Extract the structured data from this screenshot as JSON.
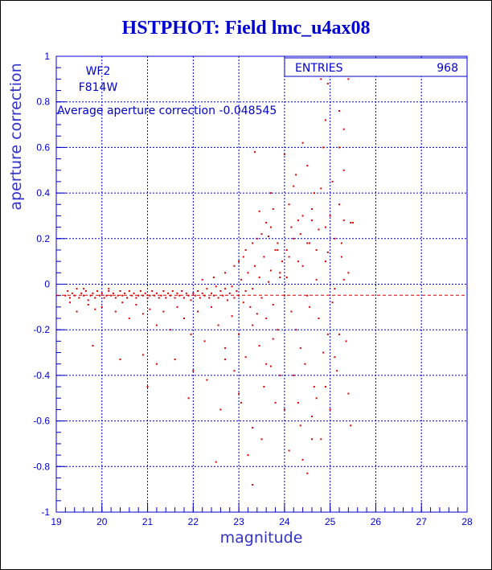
{
  "title": "HSTPHOT: Field lmc_u4ax08",
  "chart_data": {
    "type": "scatter",
    "xlabel": "magnitude",
    "ylabel": "aperture correction",
    "xlim": [
      19,
      28
    ],
    "ylim": [
      -1,
      1
    ],
    "x_ticks": [
      "19",
      "20",
      "21",
      "22",
      "23",
      "24",
      "25",
      "26",
      "27",
      "28"
    ],
    "y_ticks": [
      "-1",
      "-0.8",
      "-0.6",
      "-0.4",
      "-0.2",
      "0",
      "0.2",
      "0.4",
      "0.6",
      "0.8",
      "1"
    ],
    "grid": true,
    "stats_box": {
      "label": "ENTRIES",
      "value": "968"
    },
    "annotation_lines": [
      "WF2",
      "F814W"
    ],
    "average_text": "Average aperture correction -0.048545",
    "average_value": -0.048545,
    "marker_color": "#dd0000",
    "axis_color": "#0000cc",
    "points": [
      [
        19.2,
        -0.05
      ],
      [
        19.25,
        -0.03
      ],
      [
        19.3,
        -0.06
      ],
      [
        19.35,
        -0.04
      ],
      [
        19.4,
        -0.05
      ],
      [
        19.45,
        -0.02
      ],
      [
        19.5,
        -0.06
      ],
      [
        19.55,
        -0.04
      ],
      [
        19.6,
        -0.05
      ],
      [
        19.65,
        -0.03
      ],
      [
        19.7,
        -0.07
      ],
      [
        19.75,
        -0.05
      ],
      [
        19.8,
        -0.04
      ],
      [
        19.85,
        -0.06
      ],
      [
        19.9,
        -0.03
      ],
      [
        19.95,
        -0.05
      ],
      [
        20.0,
        -0.04
      ],
      [
        20.05,
        -0.06
      ],
      [
        20.1,
        -0.05
      ],
      [
        20.15,
        -0.03
      ],
      [
        20.2,
        -0.05
      ],
      [
        20.25,
        -0.04
      ],
      [
        20.3,
        -0.06
      ],
      [
        20.35,
        -0.05
      ],
      [
        20.4,
        -0.03
      ],
      [
        20.45,
        -0.05
      ],
      [
        20.5,
        -0.04
      ],
      [
        20.55,
        -0.06
      ],
      [
        20.6,
        -0.03
      ],
      [
        20.65,
        -0.05
      ],
      [
        20.7,
        -0.04
      ],
      [
        20.75,
        -0.06
      ],
      [
        20.8,
        -0.05
      ],
      [
        20.85,
        -0.03
      ],
      [
        20.9,
        -0.05
      ],
      [
        20.95,
        -0.04
      ],
      [
        21.0,
        -0.06
      ],
      [
        21.05,
        -0.05
      ],
      [
        21.1,
        -0.03
      ],
      [
        21.15,
        -0.05
      ],
      [
        21.2,
        -0.04
      ],
      [
        21.25,
        -0.06
      ],
      [
        21.3,
        -0.05
      ],
      [
        21.35,
        -0.03
      ],
      [
        21.4,
        -0.06
      ],
      [
        21.45,
        -0.04
      ],
      [
        21.5,
        -0.05
      ],
      [
        21.55,
        -0.03
      ],
      [
        21.6,
        -0.06
      ],
      [
        21.65,
        -0.04
      ],
      [
        21.7,
        -0.05
      ],
      [
        21.75,
        -0.03
      ],
      [
        21.8,
        -0.06
      ],
      [
        21.85,
        -0.04
      ],
      [
        21.9,
        -0.05
      ],
      [
        21.95,
        -0.07
      ],
      [
        22.0,
        -0.04
      ],
      [
        22.05,
        -0.05
      ],
      [
        22.1,
        -0.03
      ],
      [
        22.15,
        -0.06
      ],
      [
        22.2,
        -0.04
      ],
      [
        22.25,
        -0.05
      ],
      [
        22.3,
        -0.02
      ],
      [
        22.35,
        -0.06
      ],
      [
        22.4,
        -0.04
      ],
      [
        22.45,
        -0.05
      ],
      [
        22.5,
        -0.01
      ],
      [
        22.55,
        -0.06
      ],
      [
        22.6,
        -0.03
      ],
      [
        22.65,
        -0.05
      ],
      [
        22.7,
        -0.02
      ],
      [
        22.75,
        -0.07
      ],
      [
        22.8,
        -0.04
      ],
      [
        22.85,
        -0.01
      ],
      [
        22.9,
        -0.06
      ],
      [
        22.95,
        -0.03
      ],
      [
        23.0,
        -0.05
      ],
      [
        23.05,
        0.02
      ],
      [
        23.1,
        -0.08
      ],
      [
        23.15,
        -0.03
      ],
      [
        23.2,
        0.05
      ],
      [
        23.25,
        -0.1
      ],
      [
        23.3,
        -0.02
      ],
      [
        23.35,
        0.08
      ],
      [
        23.4,
        -0.13
      ],
      [
        23.45,
        0.03
      ],
      [
        23.5,
        -0.06
      ],
      [
        23.55,
        0.12
      ],
      [
        23.6,
        -0.15
      ],
      [
        23.65,
        0.01
      ],
      [
        23.7,
        0.06
      ],
      [
        23.75,
        -0.09
      ],
      [
        23.8,
        0.15
      ],
      [
        23.85,
        -0.2
      ],
      [
        23.9,
        0.03
      ],
      [
        23.95,
        0.1
      ],
      [
        19.3,
        -0.08
      ],
      [
        19.45,
        -0.12
      ],
      [
        19.6,
        -0.02
      ],
      [
        19.7,
        -0.09
      ],
      [
        19.85,
        -0.11
      ],
      [
        20.0,
        -0.1
      ],
      [
        20.15,
        -0.02
      ],
      [
        20.3,
        -0.12
      ],
      [
        20.45,
        -0.08
      ],
      [
        20.6,
        -0.15
      ],
      [
        20.75,
        -0.09
      ],
      [
        20.9,
        -0.13
      ],
      [
        21.05,
        -0.11
      ],
      [
        21.2,
        -0.18
      ],
      [
        21.35,
        -0.12
      ],
      [
        21.5,
        -0.2
      ],
      [
        21.65,
        -0.1
      ],
      [
        21.8,
        -0.15
      ],
      [
        21.95,
        -0.22
      ],
      [
        22.1,
        -0.12
      ],
      [
        22.25,
        -0.25
      ],
      [
        22.4,
        -0.1
      ],
      [
        22.55,
        -0.18
      ],
      [
        22.7,
        -0.28
      ],
      [
        22.85,
        -0.14
      ],
      [
        23.0,
        -0.22
      ],
      [
        23.15,
        -0.32
      ],
      [
        23.3,
        -0.18
      ],
      [
        23.45,
        -0.27
      ],
      [
        23.6,
        -0.35
      ],
      [
        23.75,
        -0.24
      ],
      [
        23.9,
        -0.4
      ],
      [
        19.8,
        -0.27
      ],
      [
        20.4,
        -0.33
      ],
      [
        20.9,
        -0.31
      ],
      [
        21.2,
        -0.35
      ],
      [
        21.0,
        -0.45
      ],
      [
        21.6,
        -0.33
      ],
      [
        22.0,
        -0.38
      ],
      [
        22.3,
        -0.42
      ],
      [
        21.9,
        -0.5
      ],
      [
        22.6,
        -0.55
      ],
      [
        23.0,
        -0.48
      ],
      [
        23.3,
        -0.63
      ],
      [
        23.2,
        -0.75
      ],
      [
        22.5,
        -0.78
      ],
      [
        23.3,
        -0.88
      ],
      [
        23.5,
        -0.68
      ],
      [
        23.8,
        -0.52
      ],
      [
        23.7,
        -0.36
      ],
      [
        23.55,
        -0.45
      ],
      [
        23.05,
        -0.52
      ],
      [
        22.9,
        -0.38
      ],
      [
        22.7,
        -0.33
      ],
      [
        22.2,
        0.02
      ],
      [
        22.45,
        0.03
      ],
      [
        22.7,
        0.05
      ],
      [
        22.9,
        0.08
      ],
      [
        23.0,
        0.1
      ],
      [
        23.1,
        0.12
      ],
      [
        23.15,
        0.15
      ],
      [
        23.3,
        0.18
      ],
      [
        23.4,
        0.2
      ],
      [
        23.5,
        0.22
      ],
      [
        23.6,
        0.27
      ],
      [
        23.7,
        0.25
      ],
      [
        23.85,
        0.18
      ],
      [
        23.75,
        0.33
      ],
      [
        23.45,
        0.32
      ],
      [
        23.35,
        0.58
      ],
      [
        23.7,
        0.4
      ],
      [
        23.85,
        0.15
      ],
      [
        23.9,
        0.05
      ],
      [
        23.65,
        0.21
      ],
      [
        24.0,
        -0.05
      ],
      [
        24.05,
        0.03
      ],
      [
        24.1,
        0.12
      ],
      [
        24.15,
        -0.12
      ],
      [
        24.2,
        0.2
      ],
      [
        24.25,
        -0.2
      ],
      [
        24.3,
        0.28
      ],
      [
        24.35,
        -0.28
      ],
      [
        24.4,
        0.08
      ],
      [
        24.45,
        -0.35
      ],
      [
        24.5,
        0.18
      ],
      [
        24.55,
        -0.1
      ],
      [
        24.6,
        0.33
      ],
      [
        24.65,
        -0.45
      ],
      [
        24.7,
        0.15
      ],
      [
        24.75,
        -0.15
      ],
      [
        24.8,
        0.42
      ],
      [
        24.85,
        -0.3
      ],
      [
        24.9,
        0.25
      ],
      [
        24.95,
        -0.22
      ],
      [
        25.0,
        0.3
      ],
      [
        25.05,
        -0.08
      ],
      [
        25.1,
        0.2
      ],
      [
        25.15,
        -0.38
      ],
      [
        25.2,
        0.35
      ],
      [
        25.25,
        0.12
      ],
      [
        25.3,
        0.28
      ],
      [
        25.35,
        -0.25
      ],
      [
        25.4,
        0.05
      ],
      [
        25.45,
        0.27
      ],
      [
        25.5,
        0.27
      ],
      [
        25.2,
        0.6
      ],
      [
        25.3,
        0.5
      ],
      [
        24.9,
        0.72
      ],
      [
        24.8,
        0.9
      ],
      [
        25.4,
        0.9
      ],
      [
        25.2,
        0.76
      ],
      [
        24.95,
        0.88
      ],
      [
        25.3,
        0.68
      ],
      [
        24.4,
        0.62
      ],
      [
        24.5,
        0.52
      ],
      [
        24.2,
        0.43
      ],
      [
        24.0,
        0.57
      ],
      [
        24.3,
        -0.52
      ],
      [
        24.6,
        -0.58
      ],
      [
        24.4,
        -0.77
      ],
      [
        24.5,
        -0.83
      ],
      [
        24.6,
        -0.68
      ],
      [
        24.1,
        -0.73
      ],
      [
        24.0,
        -0.55
      ],
      [
        24.2,
        -0.4
      ],
      [
        24.35,
        -0.62
      ],
      [
        24.7,
        -0.5
      ],
      [
        24.9,
        -0.45
      ],
      [
        25.1,
        -0.32
      ],
      [
        25.0,
        -0.55
      ],
      [
        24.8,
        -0.68
      ],
      [
        25.4,
        -0.48
      ],
      [
        25.45,
        -0.62
      ],
      [
        25.2,
        -0.22
      ],
      [
        24.1,
        0.35
      ],
      [
        24.3,
        0.1
      ],
      [
        24.5,
        -0.05
      ],
      [
        24.7,
        0.02
      ],
      [
        24.9,
        0.1
      ],
      [
        25.1,
        -0.02
      ],
      [
        25.3,
        0.02
      ],
      [
        24.15,
        0.25
      ],
      [
        24.4,
        0.3
      ],
      [
        24.65,
        0.4
      ],
      [
        24.85,
        0.6
      ],
      [
        25.05,
        0.45
      ],
      [
        24.25,
        0.48
      ],
      [
        24.55,
        0.18
      ],
      [
        24.75,
        0.24
      ],
      [
        24.95,
        0.14
      ],
      [
        25.25,
        0.18
      ],
      [
        24.05,
        0.15
      ],
      [
        24.35,
        0.22
      ],
      [
        24.6,
        0.28
      ]
    ]
  }
}
